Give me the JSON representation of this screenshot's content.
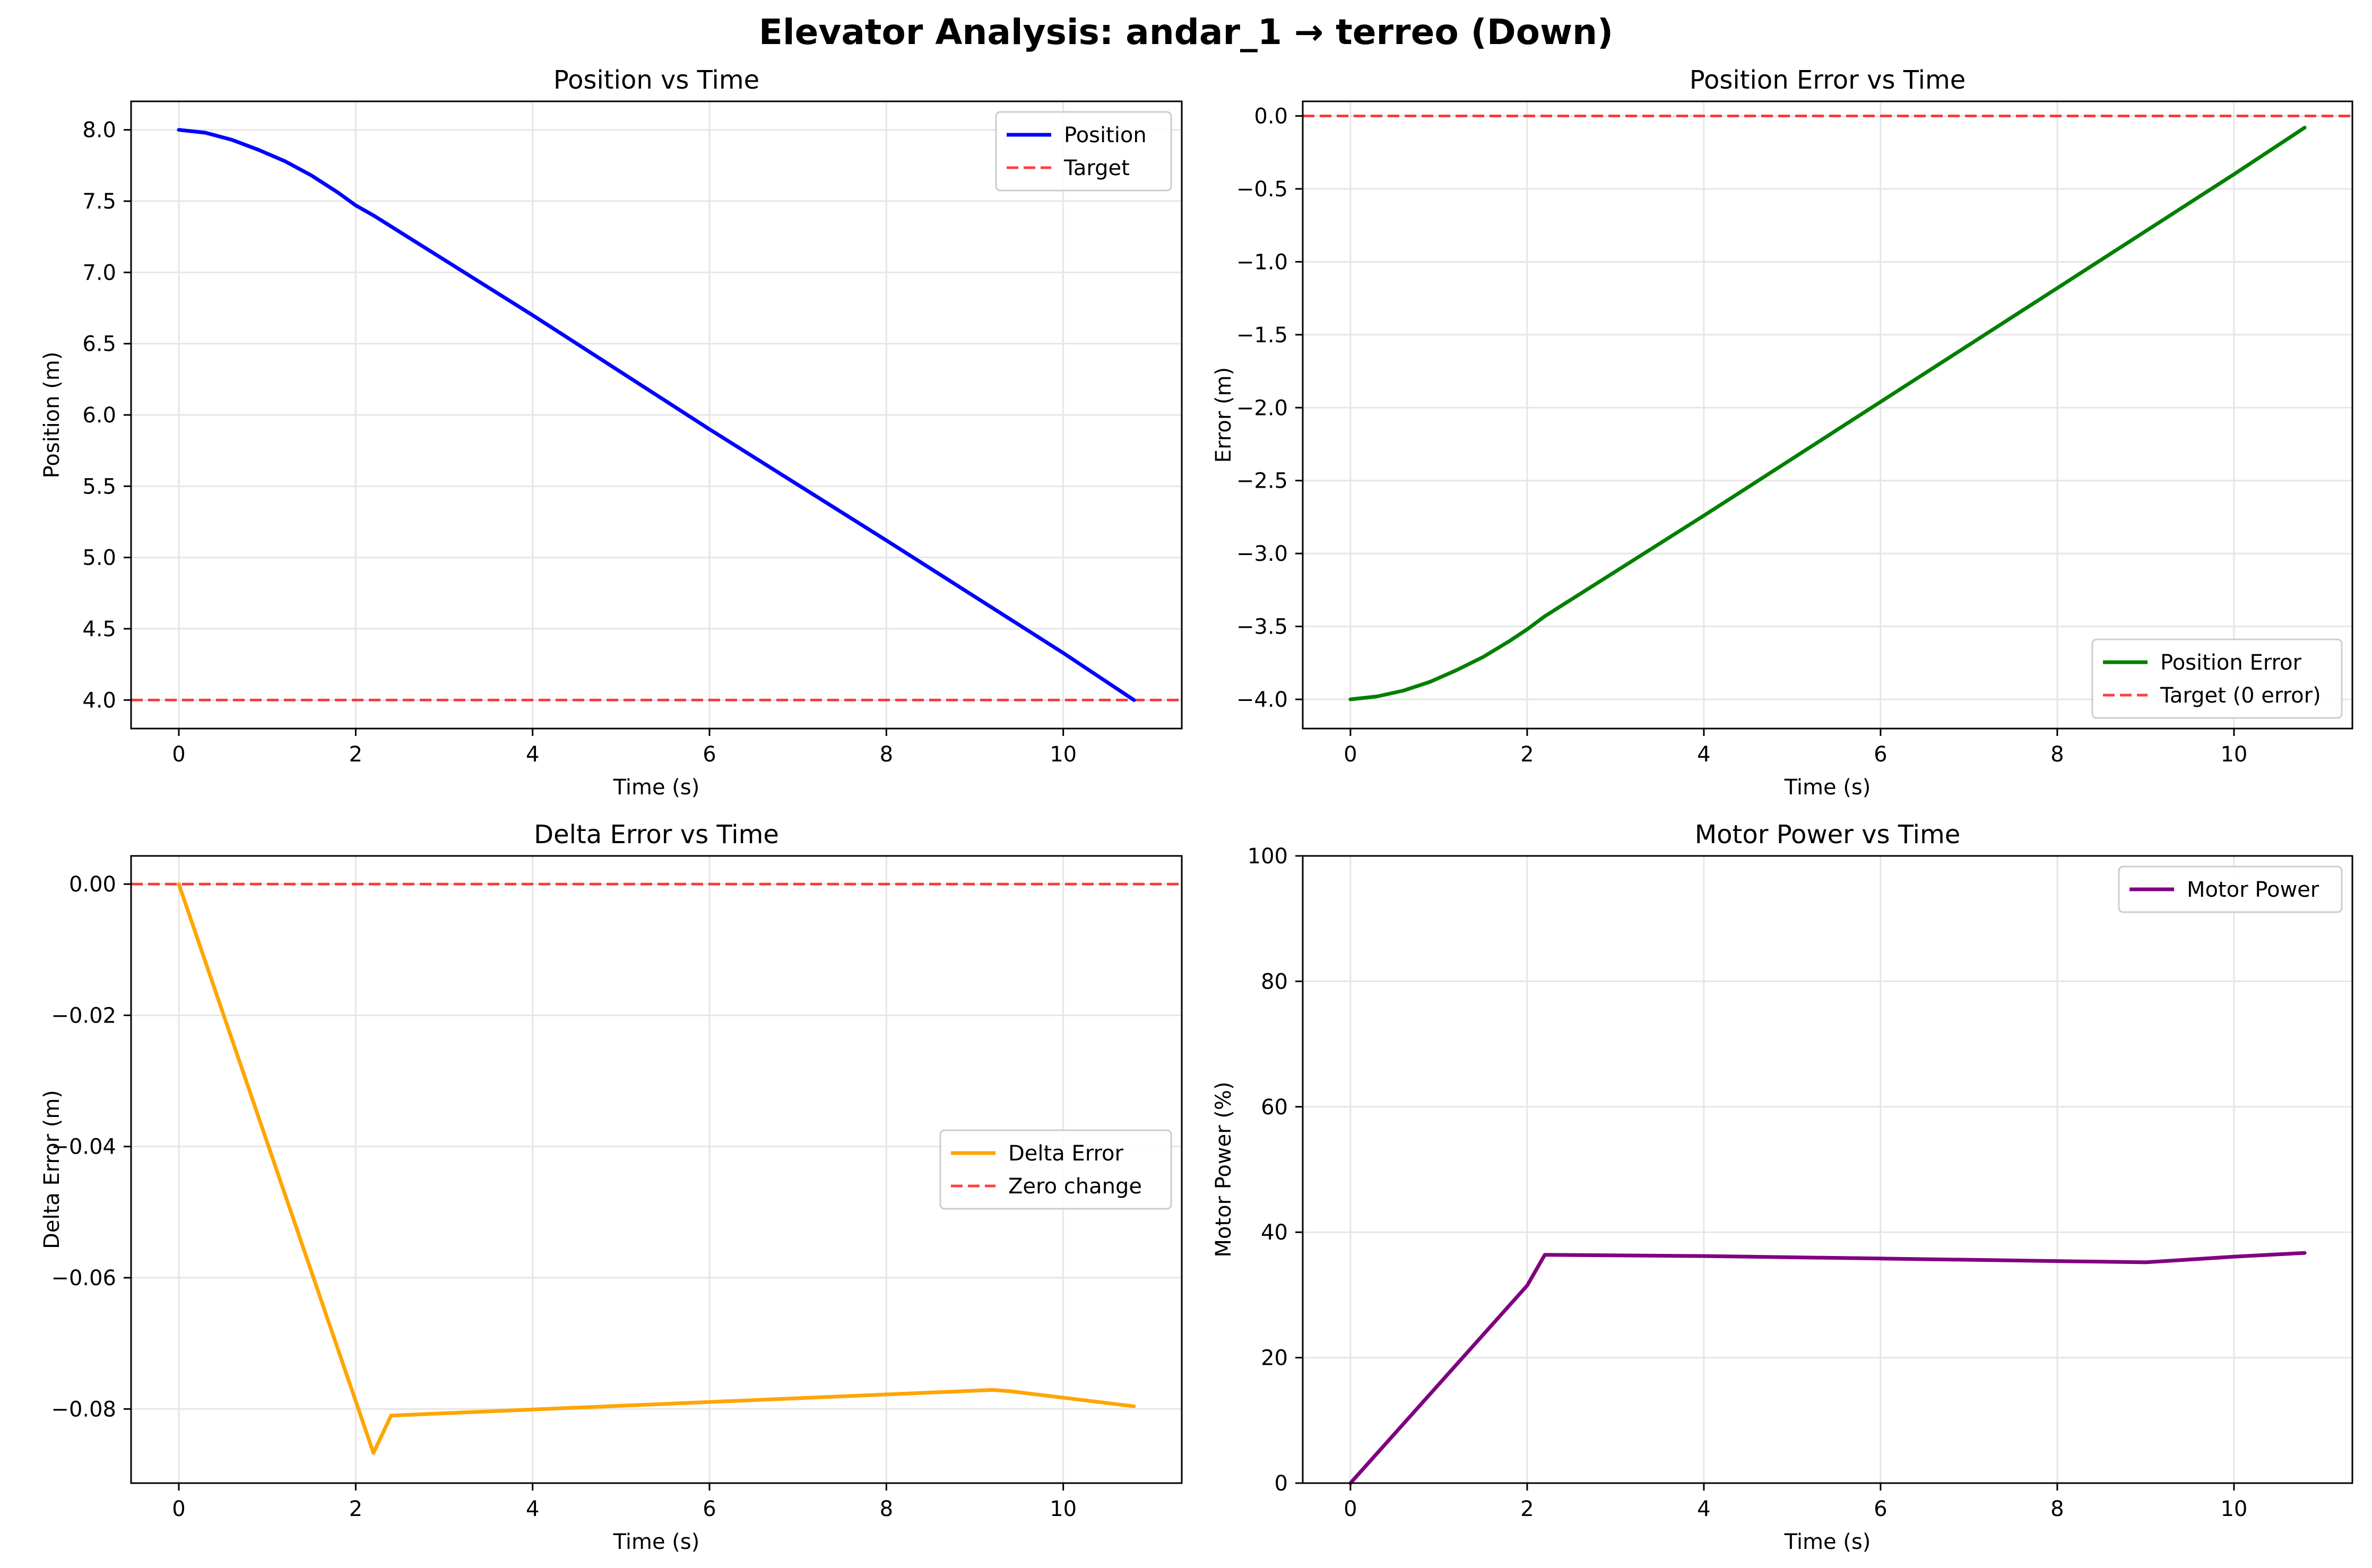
{
  "figure": {
    "title": "Elevator Analysis: andar_1 → terreo (Down)"
  },
  "chart_data": [
    {
      "type": "line",
      "title": "Position vs Time",
      "xlabel": "Time (s)",
      "ylabel": "Position (m)",
      "xlim": [
        -0.54,
        11.34
      ],
      "ylim": [
        3.8,
        8.2
      ],
      "xticks": [
        0,
        2,
        4,
        6,
        8,
        10
      ],
      "yticks": [
        4.0,
        4.5,
        5.0,
        5.5,
        6.0,
        6.5,
        7.0,
        7.5,
        8.0
      ],
      "ytick_labels": [
        "4.0",
        "4.5",
        "5.0",
        "5.5",
        "6.0",
        "6.5",
        "7.0",
        "7.5",
        "8.0"
      ],
      "grid": true,
      "legend": "upper right",
      "series": [
        {
          "name": "Position",
          "color": "#0000ff",
          "style": "solid",
          "x": [
            0,
            0.3,
            0.6,
            0.9,
            1.2,
            1.5,
            1.8,
            2.0,
            2.2,
            4.0,
            6.0,
            8.0,
            10.0,
            10.8
          ],
          "y": [
            8.0,
            7.98,
            7.93,
            7.86,
            7.78,
            7.68,
            7.56,
            7.47,
            7.4,
            6.7,
            5.9,
            5.12,
            4.33,
            4.0
          ]
        },
        {
          "name": "Target",
          "color": "#ff0000",
          "style": "dashed",
          "hline": 4.0
        }
      ]
    },
    {
      "type": "line",
      "title": "Position Error vs Time",
      "xlabel": "Time (s)",
      "ylabel": "Error (m)",
      "xlim": [
        -0.54,
        11.34
      ],
      "ylim": [
        -4.2,
        0.1
      ],
      "xticks": [
        0,
        2,
        4,
        6,
        8,
        10
      ],
      "yticks": [
        -4.0,
        -3.5,
        -3.0,
        -2.5,
        -2.0,
        -1.5,
        -1.0,
        -0.5,
        0.0
      ],
      "ytick_labels": [
        "−4.0",
        "−3.5",
        "−3.0",
        "−2.5",
        "−2.0",
        "−1.5",
        "−1.0",
        "−0.5",
        "0.0"
      ],
      "grid": true,
      "legend": "lower right",
      "series": [
        {
          "name": "Position Error",
          "color": "#008000",
          "style": "solid",
          "x": [
            0,
            0.3,
            0.6,
            0.9,
            1.2,
            1.5,
            1.8,
            2.0,
            2.2,
            4.0,
            6.0,
            8.0,
            10.0,
            10.8
          ],
          "y": [
            -4.0,
            -3.98,
            -3.94,
            -3.88,
            -3.8,
            -3.71,
            -3.6,
            -3.52,
            -3.43,
            -2.74,
            -1.96,
            -1.18,
            -0.4,
            -0.08
          ]
        },
        {
          "name": "Target (0 error)",
          "color": "#ff0000",
          "style": "dashed",
          "hline": 0.0
        }
      ]
    },
    {
      "type": "line",
      "title": "Delta Error vs Time",
      "xlabel": "Time (s)",
      "ylabel": "Delta Error (m)",
      "xlim": [
        -0.54,
        11.34
      ],
      "ylim": [
        -0.0913,
        0.0043
      ],
      "xticks": [
        0,
        2,
        4,
        6,
        8,
        10
      ],
      "yticks": [
        -0.08,
        -0.06,
        -0.04,
        -0.02,
        0.0
      ],
      "ytick_labels": [
        "−0.08",
        "−0.06",
        "−0.04",
        "−0.02",
        "0.00"
      ],
      "grid": true,
      "legend": "center right",
      "series": [
        {
          "name": "Delta Error",
          "color": "#ffa500",
          "style": "solid",
          "x": [
            0,
            2.2,
            2.4,
            9.2,
            9.4,
            10.8
          ],
          "y": [
            0.0,
            -0.0867,
            -0.081,
            -0.0771,
            -0.0773,
            -0.0796
          ]
        },
        {
          "name": "Zero change",
          "color": "#ff0000",
          "style": "dashed",
          "hline": 0.0
        }
      ]
    },
    {
      "type": "line",
      "title": "Motor Power vs Time",
      "xlabel": "Time (s)",
      "ylabel": "Motor Power (%)",
      "xlim": [
        -0.54,
        11.34
      ],
      "ylim": [
        0,
        100
      ],
      "xticks": [
        0,
        2,
        4,
        6,
        8,
        10
      ],
      "yticks": [
        0,
        20,
        40,
        60,
        80,
        100
      ],
      "ytick_labels": [
        "0",
        "20",
        "40",
        "60",
        "80",
        "100"
      ],
      "grid": true,
      "legend": "upper right",
      "series": [
        {
          "name": "Motor Power",
          "color": "#800080",
          "style": "solid",
          "x": [
            0,
            2.0,
            2.2,
            4.0,
            6.0,
            8.0,
            9.0,
            10.0,
            10.8
          ],
          "y": [
            0,
            31.5,
            36.4,
            36.2,
            35.8,
            35.4,
            35.2,
            36.1,
            36.7
          ]
        }
      ]
    }
  ]
}
